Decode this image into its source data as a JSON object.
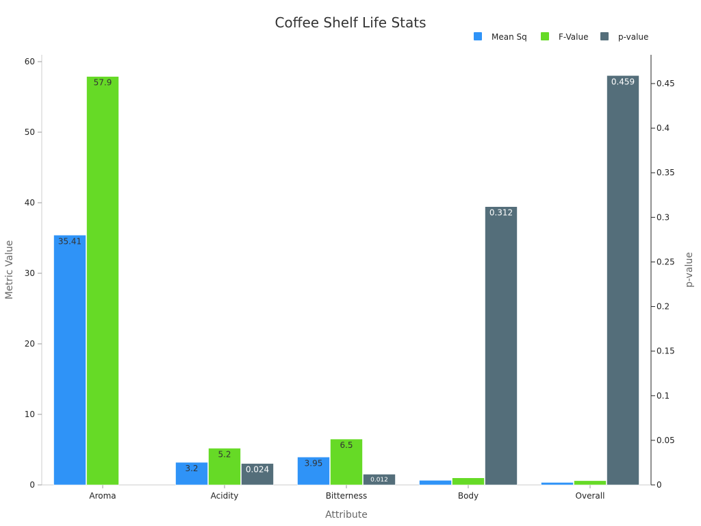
{
  "chart_data": {
    "type": "bar",
    "title": "Coffee Shelf Life Stats",
    "xlabel": "Attribute",
    "ylabel": "Metric Value",
    "y2label": "p-value",
    "categories": [
      "Aroma",
      "Acidity",
      "Bitterness",
      "Body",
      "Overall"
    ],
    "ylim": [
      0,
      60
    ],
    "yticks": [
      "0",
      "10",
      "20",
      "30",
      "40",
      "50",
      "60"
    ],
    "y2lim": [
      0,
      0.48
    ],
    "y2ticks": [
      "0",
      "0.05",
      "0.1",
      "0.15",
      "0.2",
      "0.25",
      "0.3",
      "0.35",
      "0.4",
      "0.45"
    ],
    "legend": {
      "position": "top-right"
    },
    "grid": false,
    "series": [
      {
        "name": "Mean Sq",
        "axis": "left",
        "color": "#2f93f7",
        "values": [
          35.41,
          3.2,
          3.95,
          0.65,
          0.35
        ],
        "labels": [
          "35.41",
          "3.2",
          "3.95",
          "",
          ""
        ]
      },
      {
        "name": "F-Value",
        "axis": "left",
        "color": "#66da26",
        "values": [
          57.9,
          5.2,
          6.5,
          1.0,
          0.6
        ],
        "labels": [
          "57.9",
          "5.2",
          "6.5",
          "",
          ""
        ]
      },
      {
        "name": "p-value",
        "axis": "right",
        "color": "#546e7a",
        "values": [
          0,
          0.024,
          0.012,
          0.312,
          0.459
        ],
        "labels": [
          "",
          "0.024",
          "0.012",
          "0.312",
          "0.459"
        ]
      }
    ]
  }
}
